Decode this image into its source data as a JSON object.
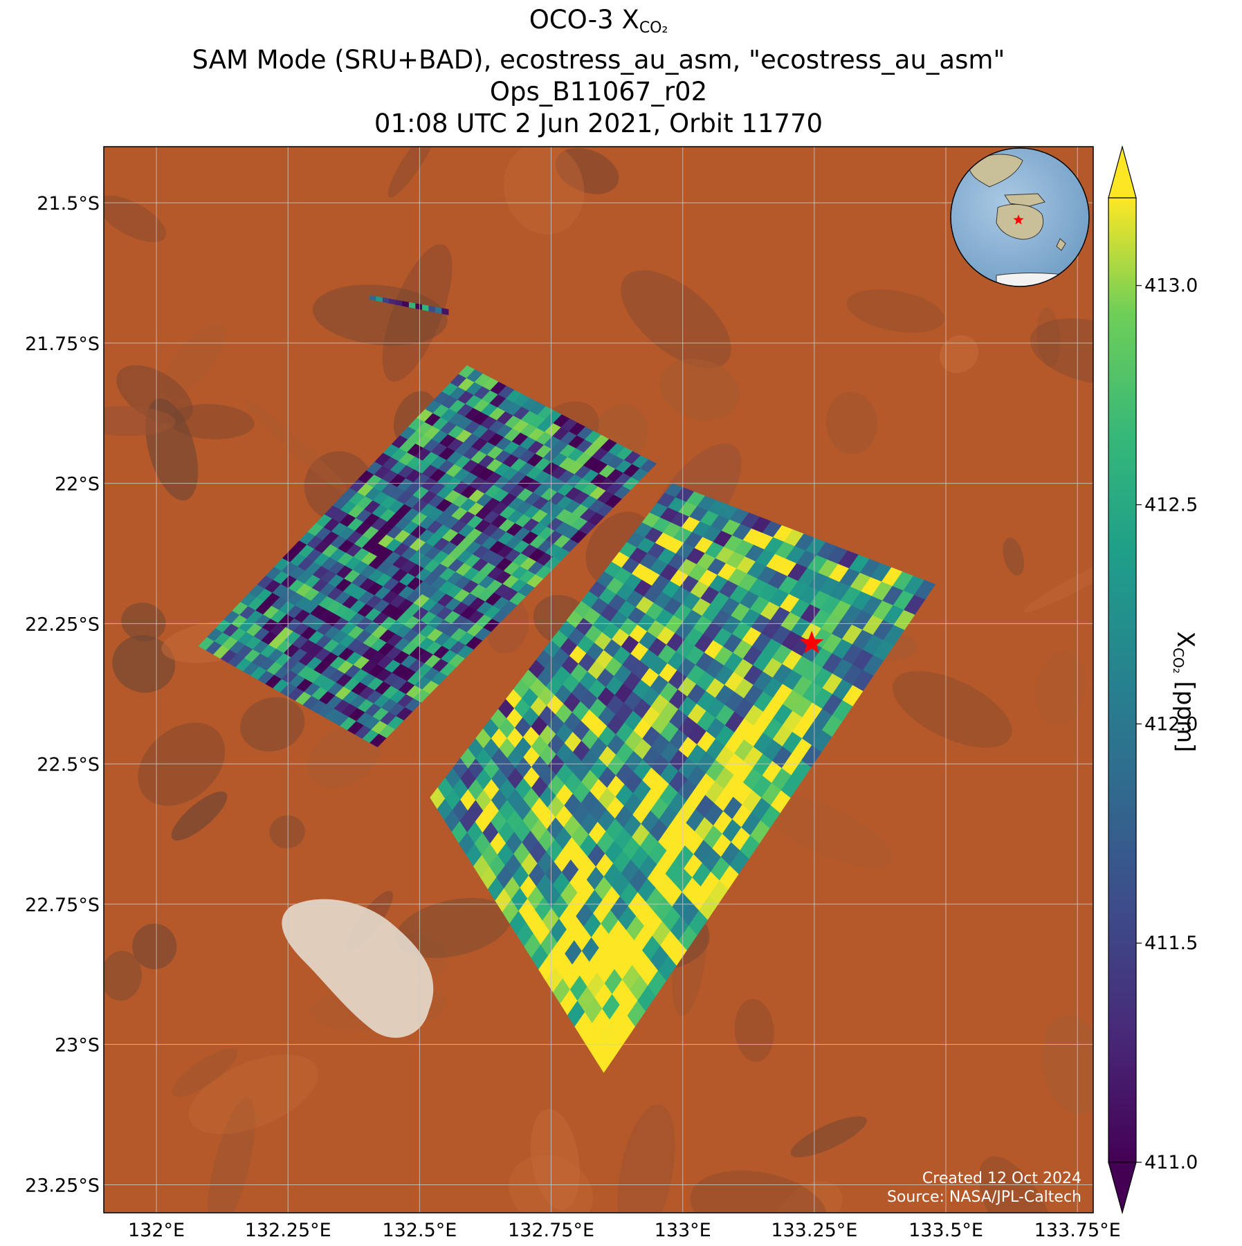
{
  "title": {
    "line1_prefix": "OCO-3 X",
    "line1_sub": "CO₂",
    "line2": "SAM Mode (SRU+BAD), ecostress_au_asm, \"ecostress_au_asm\"",
    "line3": "Ops_B11067_r02",
    "line4": "01:08 UTC 2 Jun 2021, Orbit 11770"
  },
  "map": {
    "lon_range": [
      131.9,
      133.78
    ],
    "lat_range": [
      -23.3,
      -21.4
    ],
    "lon_ticks": [
      {
        "value": 132.0,
        "label": "132°E"
      },
      {
        "value": 132.25,
        "label": "132.25°E"
      },
      {
        "value": 132.5,
        "label": "132.5°E"
      },
      {
        "value": 132.75,
        "label": "132.75°E"
      },
      {
        "value": 133.0,
        "label": "133°E"
      },
      {
        "value": 133.25,
        "label": "133.25°E"
      },
      {
        "value": 133.5,
        "label": "133.5°E"
      },
      {
        "value": 133.75,
        "label": "133.75°E"
      }
    ],
    "lat_ticks": [
      {
        "value": -21.5,
        "label": "21.5°S"
      },
      {
        "value": -21.75,
        "label": "21.75°S"
      },
      {
        "value": -22.0,
        "label": "22°S"
      },
      {
        "value": -22.25,
        "label": "22.25°S"
      },
      {
        "value": -22.5,
        "label": "22.5°S"
      },
      {
        "value": -22.75,
        "label": "22.75°S"
      },
      {
        "value": -23.0,
        "label": "23°S"
      },
      {
        "value": -23.25,
        "label": "23.25°S"
      }
    ],
    "grid": true,
    "target_marker": {
      "lon": 133.245,
      "lat": -22.285,
      "color": "#ff0000"
    },
    "basemap_colors": {
      "desert": "#b5592a",
      "dark_soil": "#7d4a31",
      "salt_lake": "#e9e2d6"
    },
    "inset_globe": {
      "ocean": "#8ab4d6",
      "land": "#c9c09a",
      "marker_color": "#ff0000"
    }
  },
  "chart_data": {
    "type": "heatmap",
    "title": "OCO-3 XCO2",
    "variable": "XCO2",
    "unit": "ppm",
    "colormap": "viridis",
    "vmin": 411.0,
    "vmax": 413.2,
    "colorbar_ticks": [
      411.0,
      411.5,
      412.0,
      412.5,
      413.0
    ],
    "colorbar_extend": "both",
    "swaths": [
      {
        "name": "small",
        "corners": [
          [
            132.405,
            -21.665
          ],
          [
            132.555,
            -21.69
          ],
          [
            132.555,
            -21.7
          ],
          [
            132.405,
            -21.672
          ]
        ],
        "mean": 411.9
      },
      {
        "name": "northwest",
        "corners": [
          [
            132.59,
            -21.79
          ],
          [
            132.95,
            -21.965
          ],
          [
            132.42,
            -22.47
          ],
          [
            132.08,
            -22.29
          ]
        ],
        "mean": 411.9
      },
      {
        "name": "south",
        "corners": [
          [
            132.98,
            -22.0
          ],
          [
            133.48,
            -22.18
          ],
          [
            132.85,
            -23.05
          ],
          [
            132.52,
            -22.56
          ]
        ],
        "mean": 412.3
      }
    ]
  },
  "colorbar": {
    "label_prefix": "X",
    "label_sub": "CO₂",
    "label_suffix": " [ppm]",
    "ticks": [
      {
        "value": 411.0,
        "label": "411.0"
      },
      {
        "value": 411.5,
        "label": "411.5"
      },
      {
        "value": 412.0,
        "label": "412.0"
      },
      {
        "value": 412.5,
        "label": "412.5"
      },
      {
        "value": 413.0,
        "label": "413.0"
      }
    ]
  },
  "credits": {
    "created": "Created 12 Oct 2024",
    "source": "Source: NASA/JPL-Caltech"
  }
}
